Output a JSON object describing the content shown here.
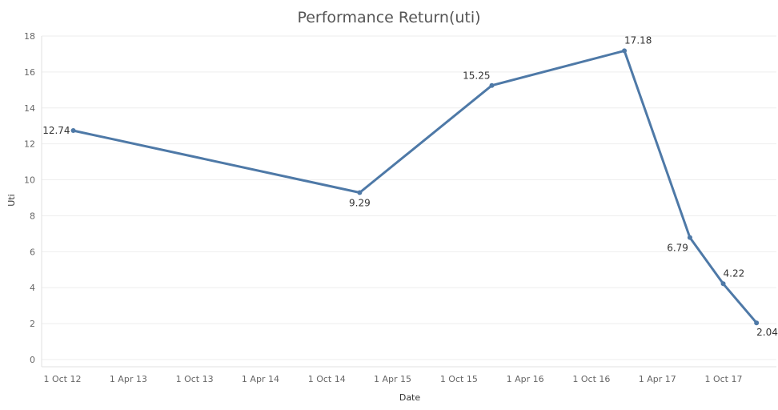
{
  "chart_data": {
    "type": "line",
    "title": "Performance Return(uti)",
    "xlabel": "Date",
    "ylabel": "Uti",
    "ylim": [
      0,
      18
    ],
    "y_ticks": [
      0,
      2,
      4,
      6,
      8,
      10,
      12,
      14,
      16,
      18
    ],
    "x_ticks": [
      {
        "date": "2012-10-01",
        "label": "1 Oct 12"
      },
      {
        "date": "2013-04-01",
        "label": "1 Apr 13"
      },
      {
        "date": "2013-10-01",
        "label": "1 Oct 13"
      },
      {
        "date": "2014-04-01",
        "label": "1 Apr 14"
      },
      {
        "date": "2014-10-01",
        "label": "1 Oct 14"
      },
      {
        "date": "2015-04-01",
        "label": "1 Apr 15"
      },
      {
        "date": "2015-10-01",
        "label": "1 Oct 15"
      },
      {
        "date": "2016-04-01",
        "label": "1 Apr 16"
      },
      {
        "date": "2016-10-01",
        "label": "1 Oct 16"
      },
      {
        "date": "2017-04-01",
        "label": "1 Apr 17"
      },
      {
        "date": "2017-10-01",
        "label": "1 Oct 17"
      }
    ],
    "grid": true,
    "color": "#4e79a7",
    "points": [
      {
        "x": "2012-10-31",
        "y": 12.74,
        "label": "12.74",
        "label_pos": "left"
      },
      {
        "x": "2014-12-31",
        "y": 9.29,
        "label": "9.29",
        "label_pos": "below"
      },
      {
        "x": "2015-12-31",
        "y": 15.25,
        "label": "15.25",
        "label_pos": "above-left"
      },
      {
        "x": "2016-12-31",
        "y": 17.18,
        "label": "17.18",
        "label_pos": "above-right"
      },
      {
        "x": "2017-06-30",
        "y": 6.79,
        "label": "6.79",
        "label_pos": "below-left"
      },
      {
        "x": "2017-09-30",
        "y": 4.22,
        "label": "4.22",
        "label_pos": "above-right"
      },
      {
        "x": "2017-12-31",
        "y": 2.04,
        "label": "2.04",
        "label_pos": "below-right"
      }
    ]
  }
}
